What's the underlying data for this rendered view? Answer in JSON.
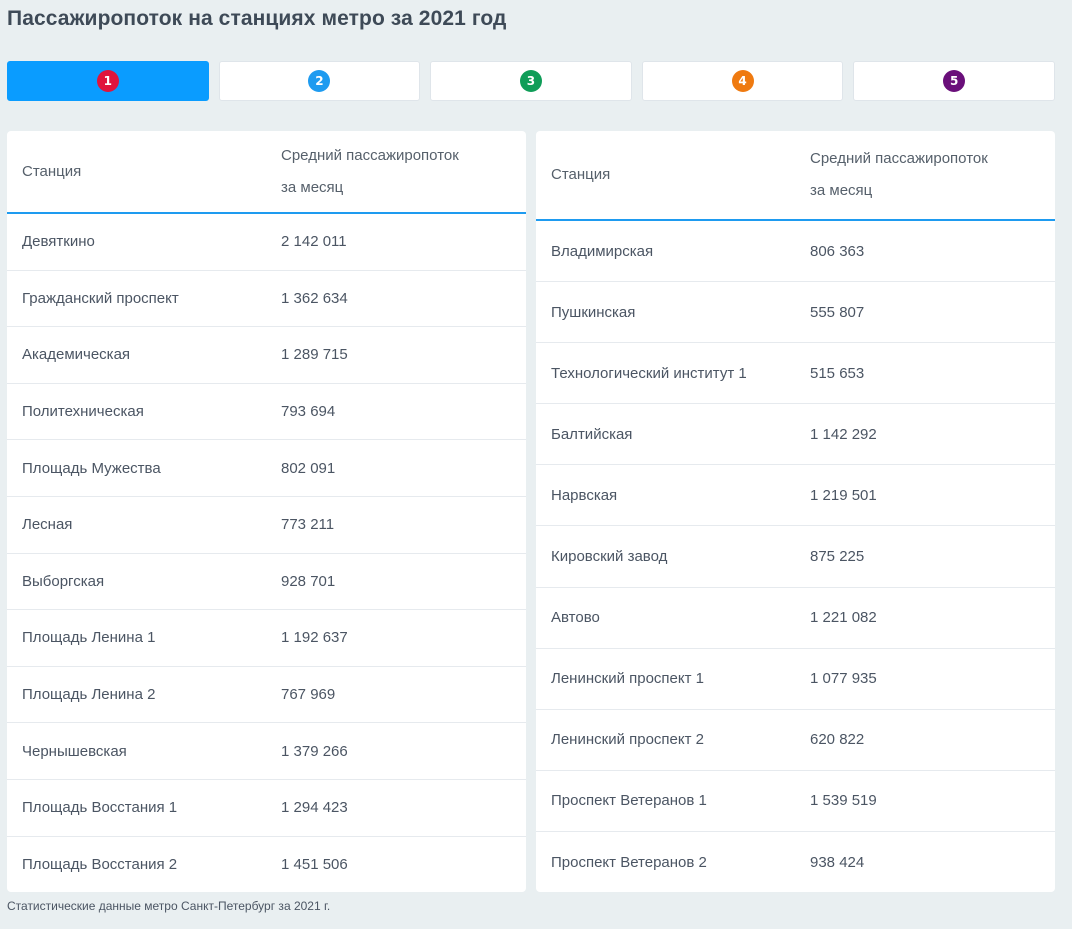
{
  "title": "Пассажиропоток на станциях метро за 2021 год",
  "tabs": [
    {
      "label": "1",
      "color": "#e0143c",
      "active": true
    },
    {
      "label": "2",
      "color": "#1e9bf0",
      "active": false
    },
    {
      "label": "3",
      "color": "#0f9d58",
      "active": false
    },
    {
      "label": "4",
      "color": "#ef7a10",
      "active": false
    },
    {
      "label": "5",
      "color": "#6a0f7a",
      "active": false
    }
  ],
  "table_left": {
    "header": {
      "station": "Станция",
      "flow_line1": "Средний пассажиропоток",
      "flow_line2": "за месяц"
    },
    "rows": [
      {
        "station": "Девяткино",
        "flow": "2 142 011"
      },
      {
        "station": "Гражданский проспект",
        "flow": "1 362 634"
      },
      {
        "station": "Академическая",
        "flow": "1 289 715"
      },
      {
        "station": "Политехническая",
        "flow": "793 694"
      },
      {
        "station": "Площадь Мужества",
        "flow": "802 091"
      },
      {
        "station": "Лесная",
        "flow": "773 211"
      },
      {
        "station": "Выборгская",
        "flow": "928 701"
      },
      {
        "station": "Площадь Ленина 1",
        "flow": "1 192 637"
      },
      {
        "station": "Площадь Ленина 2",
        "flow": "767 969"
      },
      {
        "station": "Чернышевская",
        "flow": "1 379 266"
      },
      {
        "station": "Площадь Восстания 1",
        "flow": "1 294 423"
      },
      {
        "station": "Площадь Восстания 2",
        "flow": "1 451 506"
      }
    ]
  },
  "table_right": {
    "header": {
      "station": "Станция",
      "flow_line1": "Средний пассажиропоток",
      "flow_line2": "за месяц"
    },
    "rows": [
      {
        "station": "Владимирская",
        "flow": "806 363"
      },
      {
        "station": "Пушкинская",
        "flow": "555 807"
      },
      {
        "station": "Технологический институт 1",
        "flow": "515 653"
      },
      {
        "station": "Балтийская",
        "flow": "1 142 292"
      },
      {
        "station": "Нарвская",
        "flow": "1 219 501"
      },
      {
        "station": "Кировский завод",
        "flow": "875 225"
      },
      {
        "station": "Автово",
        "flow": "1 221 082"
      },
      {
        "station": "Ленинский проспект 1",
        "flow": "1 077 935"
      },
      {
        "station": "Ленинский проспект 2",
        "flow": "620 822"
      },
      {
        "station": "Проспект Ветеранов 1",
        "flow": "1 539 519"
      },
      {
        "station": "Проспект Ветеранов 2",
        "flow": "938 424"
      }
    ]
  },
  "caption": "Статистические данные метро Санкт-Петербург за 2021 г.",
  "colors": {
    "active_tab": "#0a9cff",
    "header_rule": "#1e9bf0",
    "background": "#e9eff1"
  }
}
